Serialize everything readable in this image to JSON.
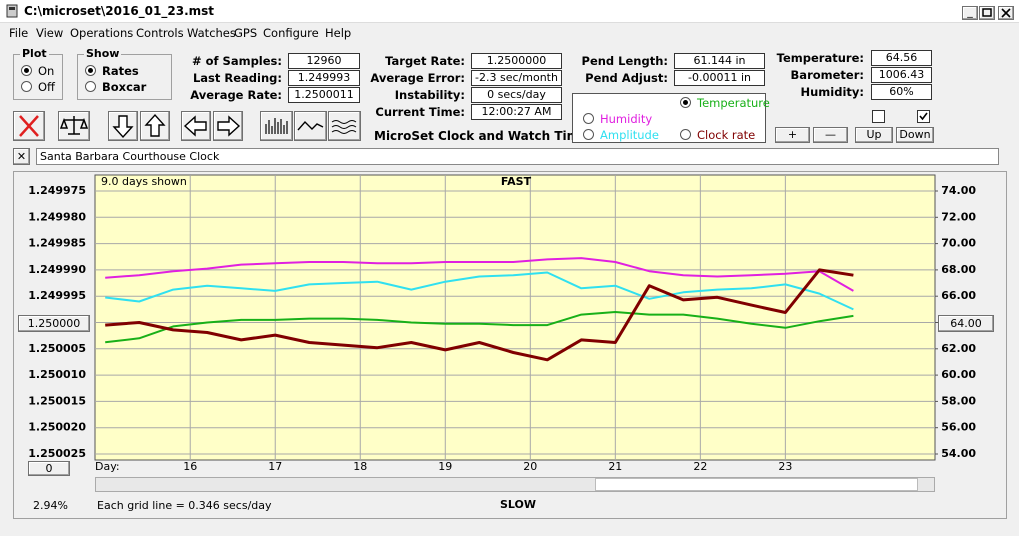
{
  "window": {
    "title": "C:\\microset\\2016_01_23.mst"
  },
  "menu": [
    "File",
    "View",
    "Operations",
    "Controls",
    "Watches",
    "GPS",
    "Configure",
    "Help"
  ],
  "plot_group": {
    "label": "Plot",
    "options": [
      "On",
      "Off"
    ]
  },
  "show_group": {
    "label": "Show",
    "options": [
      "Rates",
      "Boxcar"
    ]
  },
  "field_columns": [
    [
      {
        "label": "# of Samples:",
        "value": "12960"
      },
      {
        "label": "Last Reading:",
        "value": "1.249993"
      },
      {
        "label": "Average Rate:",
        "value": "1.2500011"
      }
    ],
    [
      {
        "label": "Target Rate:",
        "value": "1.2500000"
      },
      {
        "label": "Average Error:",
        "value": "-2.3 sec/month"
      },
      {
        "label": "Instability:",
        "value": "0 secs/day"
      },
      {
        "label": "Current Time:",
        "value": "12:00:27 AM"
      }
    ],
    [
      {
        "label": "Pend Length:",
        "value": "61.144 in"
      },
      {
        "label": "Pend Adjust:",
        "value": "-0.00011 in"
      }
    ],
    [
      {
        "label": "Temperature:",
        "value": "64.56"
      },
      {
        "label": "Barometer:",
        "value": "1006.43"
      },
      {
        "label": "Humidity:",
        "value": "60%"
      }
    ]
  ],
  "app_label": "MicroSet Clock and Watch Timer",
  "buttons": [
    "+",
    "—",
    "Up",
    "Down"
  ],
  "watch_name": "Santa Barbara Courthouse Clock",
  "left_box": "1.250000",
  "right_box": "64.00",
  "bottom_box": "0",
  "status": {
    "percent": "2.94%",
    "grid_note": "Each grid line = 0.346 secs/day"
  },
  "chart_data": {
    "type": "line",
    "days_shown": "9.0 days shown",
    "top_label": "FAST",
    "bottom_label": "SLOW",
    "x_label": "Day:",
    "x": [
      15.0,
      15.4,
      15.8,
      16.2,
      16.6,
      17.0,
      17.4,
      17.8,
      18.2,
      18.6,
      19.0,
      19.4,
      19.8,
      20.2,
      20.6,
      21.0,
      21.4,
      21.8,
      22.2,
      22.6,
      23.0,
      23.4,
      23.8
    ],
    "xlim": [
      14.88,
      24.76
    ],
    "xticks": [
      16,
      17,
      18,
      19,
      20,
      21,
      22,
      23
    ],
    "ylim": [
      1.250025,
      1.249975
    ],
    "yticks": [
      {
        "value": 1.249975,
        "label": "1.249975"
      },
      {
        "value": 1.24998,
        "label": "1.249980"
      },
      {
        "value": 1.249985,
        "label": "1.249985"
      },
      {
        "value": 1.24999,
        "label": "1.249990"
      },
      {
        "value": 1.249995,
        "label": "1.249995"
      },
      {
        "value": 1.25,
        "label": "1.250000"
      },
      {
        "value": 1.250005,
        "label": "1.250005"
      },
      {
        "value": 1.25001,
        "label": "1.250010"
      },
      {
        "value": 1.250015,
        "label": "1.250015"
      },
      {
        "value": 1.25002,
        "label": "1.250020"
      },
      {
        "value": 1.250025,
        "label": "1.250025"
      }
    ],
    "y2lim": [
      54,
      74
    ],
    "y2ticks": [
      {
        "value": 74,
        "label": "74.00"
      },
      {
        "value": 72,
        "label": "72.00"
      },
      {
        "value": 70,
        "label": "70.00"
      },
      {
        "value": 68,
        "label": "68.00"
      },
      {
        "value": 66,
        "label": "66.00"
      },
      {
        "value": 64,
        "label": "64.00"
      },
      {
        "value": 62,
        "label": "62.00"
      },
      {
        "value": 60,
        "label": "60.00"
      },
      {
        "value": 58,
        "label": "58.00"
      },
      {
        "value": 56,
        "label": "56.00"
      },
      {
        "value": 54,
        "label": "54.00"
      }
    ],
    "grid": true,
    "selected_series": 0,
    "series": [
      {
        "name": "Temperature",
        "color": "#18b018",
        "axis": "y2",
        "values": [
          62.5,
          62.8,
          63.7,
          64.0,
          64.2,
          64.2,
          64.3,
          64.3,
          64.2,
          64.0,
          63.9,
          63.9,
          63.8,
          63.8,
          64.6,
          64.8,
          64.6,
          64.6,
          64.3,
          63.9,
          63.6,
          64.1,
          64.5
        ]
      },
      {
        "name": "Humidity",
        "color": "#e020e0",
        "axis": "y2",
        "values": [
          67.4,
          67.6,
          67.9,
          68.1,
          68.4,
          68.5,
          68.6,
          68.6,
          68.5,
          68.5,
          68.6,
          68.6,
          68.6,
          68.8,
          68.9,
          68.6,
          67.9,
          67.6,
          67.5,
          67.6,
          67.7,
          67.9,
          66.4
        ]
      },
      {
        "name": "Amplitude",
        "color": "#30e0f0",
        "axis": "y2",
        "values": [
          65.9,
          65.6,
          66.5,
          66.8,
          66.6,
          66.4,
          66.9,
          67.0,
          67.1,
          66.5,
          67.1,
          67.5,
          67.6,
          67.8,
          66.6,
          66.8,
          65.8,
          66.3,
          66.5,
          66.6,
          66.9,
          66.2,
          65.0
        ]
      },
      {
        "name": "Clock rate",
        "color": "#800000",
        "axis": "y",
        "values": [
          1.2500005,
          1.25,
          1.2500014,
          1.2500019,
          1.2500033,
          1.2500024,
          1.2500038,
          1.2500043,
          1.2500048,
          1.2500038,
          1.2500052,
          1.2500038,
          1.2500057,
          1.2500071,
          1.2500033,
          1.2500038,
          1.249993,
          1.2499957,
          1.2499952,
          1.2499967,
          1.2499981,
          1.24999,
          1.249991
        ]
      }
    ]
  }
}
